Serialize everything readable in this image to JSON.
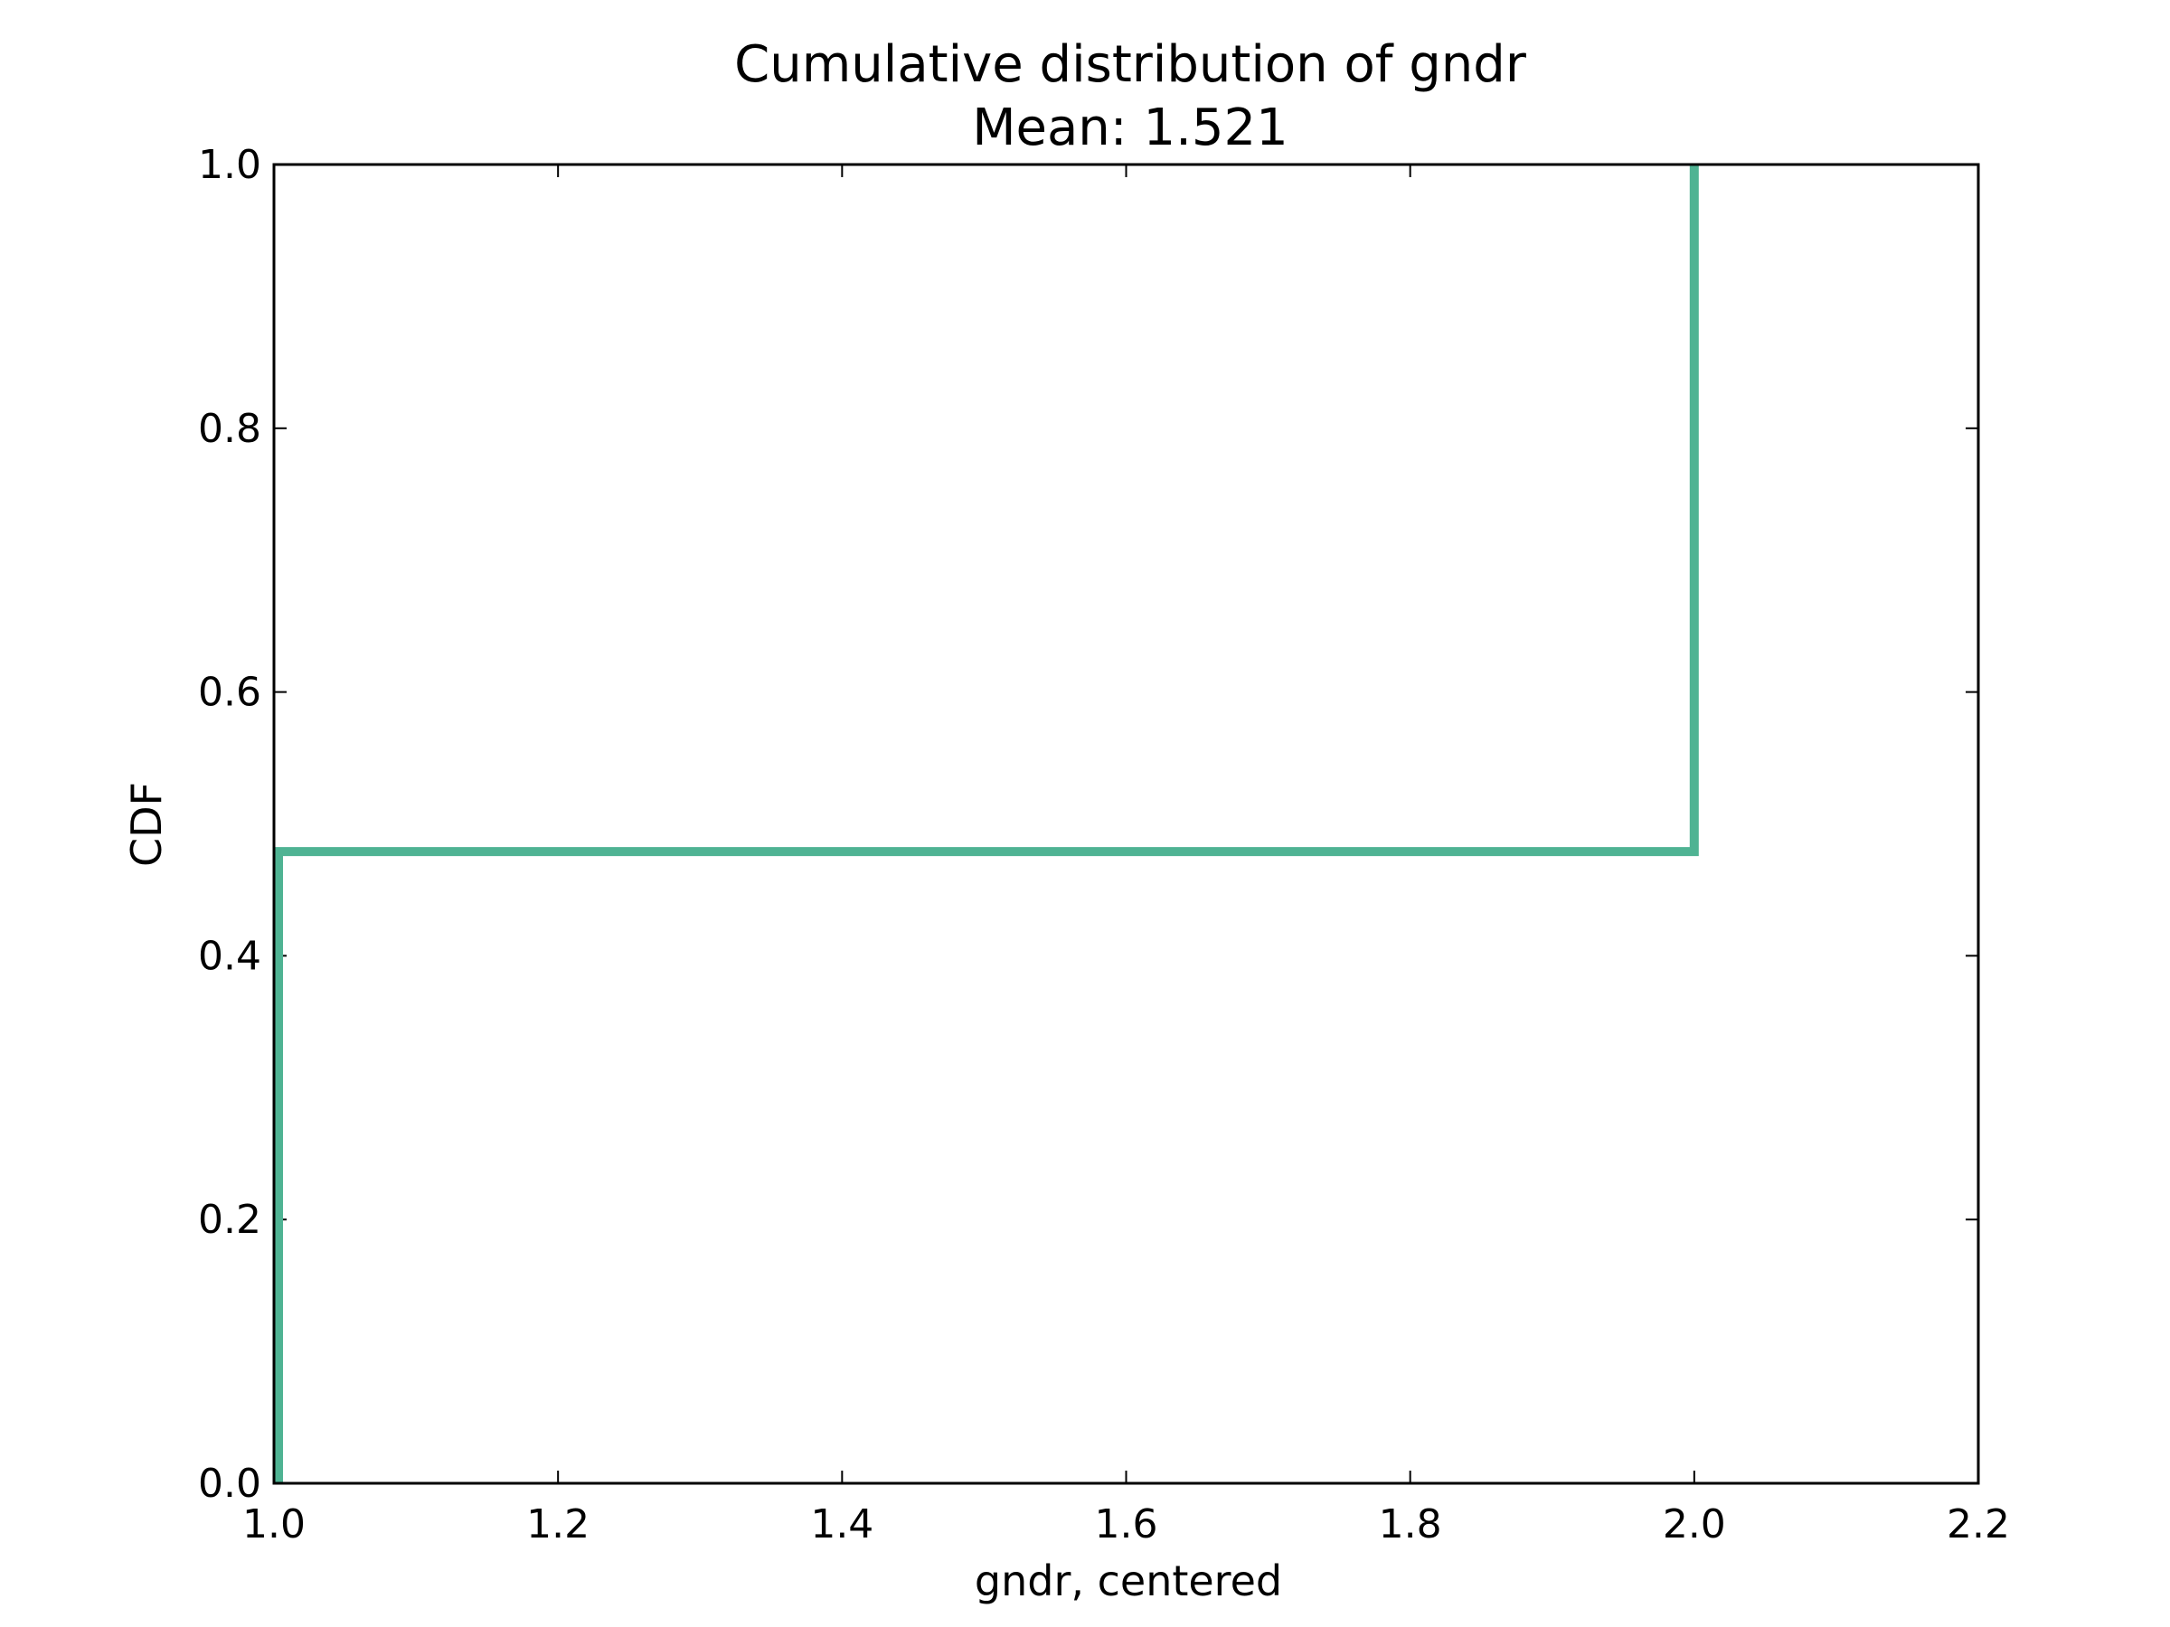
{
  "chart_data": {
    "type": "line",
    "title": "Cumulative distribution of gndr",
    "subtitle": "Mean: 1.521",
    "xlabel": "gndr, centered",
    "ylabel": "CDF",
    "xlim": [
      1.0,
      2.2
    ],
    "ylim": [
      0.0,
      1.0
    ],
    "xticks": [
      "1.0",
      "1.2",
      "1.4",
      "1.6",
      "1.8",
      "2.0",
      "2.2"
    ],
    "yticks": [
      "0.0",
      "0.2",
      "0.4",
      "0.6",
      "0.8",
      "1.0"
    ],
    "grid": false,
    "series": [
      {
        "step": true,
        "color": "#4fb393",
        "x": [
          1.0,
          1.0,
          2.0,
          2.0
        ],
        "y": [
          0.0,
          0.479,
          0.479,
          1.0
        ]
      }
    ]
  }
}
